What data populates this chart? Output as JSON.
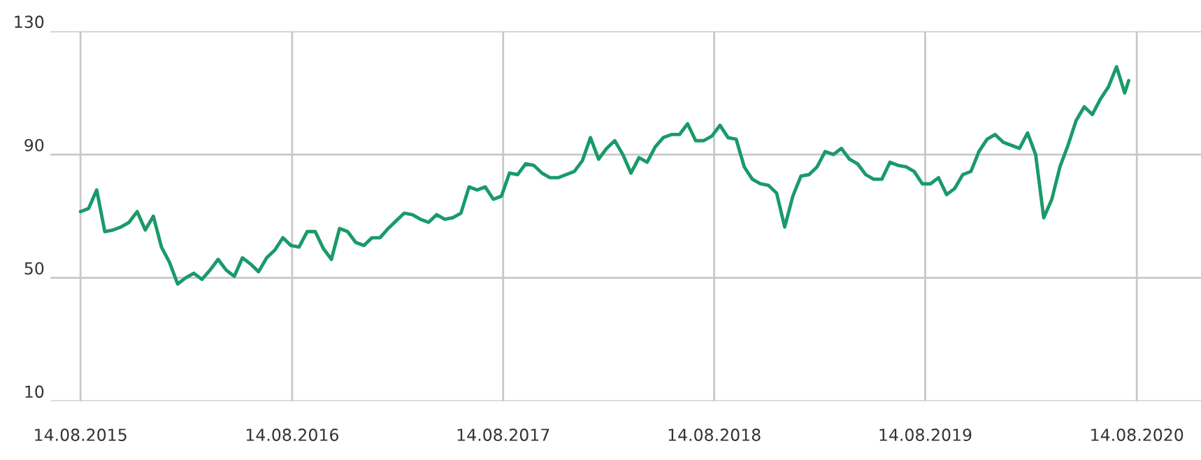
{
  "chart_data": {
    "type": "line",
    "x": [
      "2015-08-14",
      "2015-08-28",
      "2015-09-11",
      "2015-09-25",
      "2015-10-09",
      "2015-10-23",
      "2015-11-06",
      "2015-11-20",
      "2015-12-04",
      "2015-12-18",
      "2016-01-01",
      "2016-01-15",
      "2016-01-29",
      "2016-02-12",
      "2016-02-26",
      "2016-03-11",
      "2016-03-25",
      "2016-04-08",
      "2016-04-22",
      "2016-05-06",
      "2016-05-20",
      "2016-06-03",
      "2016-06-17",
      "2016-07-01",
      "2016-07-15",
      "2016-07-29",
      "2016-08-12",
      "2016-08-26",
      "2016-09-09",
      "2016-09-23",
      "2016-10-07",
      "2016-10-21",
      "2016-11-04",
      "2016-11-18",
      "2016-12-02",
      "2016-12-16",
      "2016-12-30",
      "2017-01-13",
      "2017-01-27",
      "2017-02-10",
      "2017-02-24",
      "2017-03-10",
      "2017-03-24",
      "2017-04-07",
      "2017-04-21",
      "2017-05-05",
      "2017-05-19",
      "2017-06-02",
      "2017-06-16",
      "2017-06-30",
      "2017-07-14",
      "2017-07-28",
      "2017-08-11",
      "2017-08-25",
      "2017-09-08",
      "2017-09-22",
      "2017-10-06",
      "2017-10-20",
      "2017-11-03",
      "2017-11-17",
      "2017-12-01",
      "2017-12-15",
      "2017-12-29",
      "2018-01-12",
      "2018-01-26",
      "2018-02-09",
      "2018-02-23",
      "2018-03-09",
      "2018-03-23",
      "2018-04-06",
      "2018-04-20",
      "2018-05-04",
      "2018-05-18",
      "2018-06-01",
      "2018-06-15",
      "2018-06-29",
      "2018-07-13",
      "2018-07-27",
      "2018-08-10",
      "2018-08-24",
      "2018-09-07",
      "2018-09-21",
      "2018-10-05",
      "2018-10-19",
      "2018-11-02",
      "2018-11-16",
      "2018-11-30",
      "2018-12-14",
      "2018-12-28",
      "2019-01-11",
      "2019-01-25",
      "2019-02-08",
      "2019-02-22",
      "2019-03-08",
      "2019-03-22",
      "2019-04-05",
      "2019-04-19",
      "2019-05-03",
      "2019-05-17",
      "2019-05-31",
      "2019-06-14",
      "2019-06-28",
      "2019-07-12",
      "2019-07-26",
      "2019-08-09",
      "2019-08-23",
      "2019-09-06",
      "2019-09-20",
      "2019-10-04",
      "2019-10-18",
      "2019-11-01",
      "2019-11-15",
      "2019-11-29",
      "2019-12-13",
      "2019-12-27",
      "2020-01-10",
      "2020-01-24",
      "2020-02-07",
      "2020-02-21",
      "2020-03-06",
      "2020-03-20",
      "2020-04-03",
      "2020-04-17",
      "2020-05-01",
      "2020-05-15",
      "2020-05-29",
      "2020-06-12",
      "2020-06-26",
      "2020-07-10",
      "2020-07-24",
      "2020-07-31"
    ],
    "series": [
      {
        "color": "#1a9a6a",
        "values": [
          71.5,
          72.5,
          78.5,
          65,
          65.5,
          66.5,
          68,
          71.5,
          65.5,
          70,
          60,
          55,
          48,
          50,
          51.5,
          49.5,
          52.5,
          56,
          52.5,
          50.5,
          56.5,
          54.5,
          52,
          56.5,
          59,
          63,
          60.5,
          60,
          65,
          65,
          59.5,
          56,
          66,
          65,
          61.5,
          60.5,
          63,
          63,
          66,
          68.5,
          71,
          70.5,
          69,
          68,
          70.5,
          69,
          69.5,
          71,
          79.5,
          78.5,
          79.5,
          75.5,
          76.5,
          84,
          83.5,
          87,
          86.5,
          84,
          82.5,
          82.5,
          83.5,
          84.5,
          88,
          95.5,
          88.5,
          92,
          94.5,
          90,
          84,
          89,
          87.5,
          92.5,
          95.5,
          96.5,
          96.5,
          100,
          94.5,
          94.5,
          96,
          99.5,
          95.5,
          95,
          86,
          82,
          80.5,
          80,
          77.5,
          66.5,
          76.5,
          83,
          83.5,
          86,
          91,
          90,
          92,
          88.5,
          87,
          83.5,
          82,
          82,
          87.5,
          86.5,
          86,
          84.5,
          80.5,
          80.5,
          82.5,
          77,
          79,
          83.5,
          84.5,
          91,
          95,
          96.5,
          94,
          93,
          92,
          97,
          90,
          69.5,
          75.5,
          86,
          93,
          101,
          105.5,
          103,
          108,
          112,
          118.5,
          110,
          114
        ]
      }
    ],
    "xlim": [
      "2015-06-23",
      "2020-12-03"
    ],
    "xticks": [
      {
        "value": "2015-08-14",
        "label": "14.08.2015"
      },
      {
        "value": "2016-08-14",
        "label": "14.08.2016"
      },
      {
        "value": "2017-08-14",
        "label": "14.08.2017"
      },
      {
        "value": "2018-08-14",
        "label": "14.08.2018"
      },
      {
        "value": "2019-08-14",
        "label": "14.08.2019"
      },
      {
        "value": "2020-08-14",
        "label": "14.08.2020"
      }
    ],
    "ylim": [
      10,
      130
    ],
    "yticks": [
      10,
      50,
      90,
      130
    ],
    "grid": true,
    "line_style": "solid",
    "marker": "none"
  }
}
